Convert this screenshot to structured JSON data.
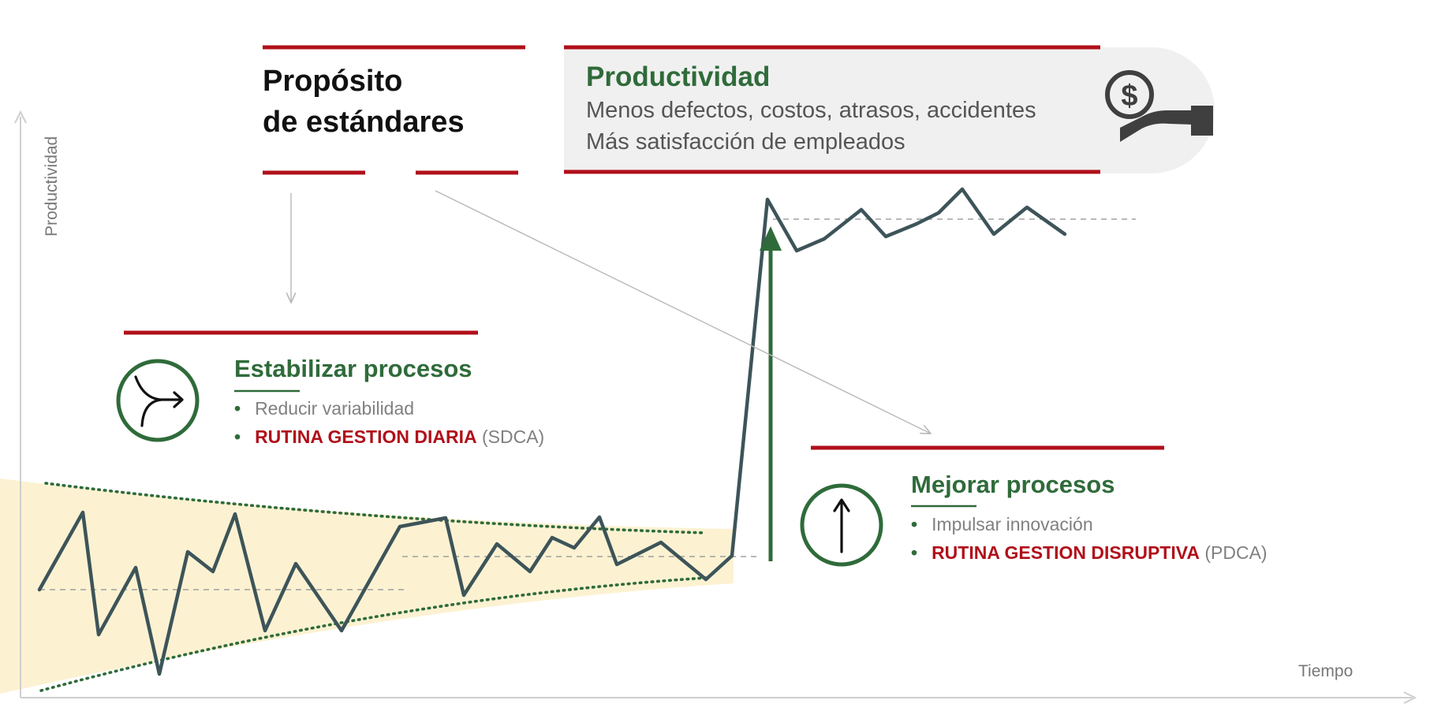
{
  "purpose": {
    "title_line1": "Propósito",
    "title_line2": "de estándares"
  },
  "productivity_box": {
    "title": "Productividad",
    "line1": "Menos defectos, costos, atrasos, accidentes",
    "line2": "Más satisfacción de empleados",
    "icon": "money-in-hand-icon"
  },
  "stabilize": {
    "title": "Estabilizar procesos",
    "icon": "merge-arrow-icon",
    "bullet1": "Reducir variabilidad",
    "bullet2_routine": "RUTINA GESTION DIARIA",
    "bullet2_suffix": " (SDCA)"
  },
  "improve": {
    "title": "Mejorar procesos",
    "icon": "up-arrow-icon",
    "bullet1": "Impulsar innovación",
    "bullet2_routine": "RUTINA GESTION DISRUPTIVA",
    "bullet2_suffix": " (PDCA)"
  },
  "axes": {
    "y_label": "Productividad",
    "x_label": "Tiempo"
  },
  "bullet_symbol": "•",
  "colors": {
    "accent_red": "#b0101a",
    "accent_green": "#2f6b3a",
    "series": "#3d5459",
    "band": "#fcf2d2"
  }
}
